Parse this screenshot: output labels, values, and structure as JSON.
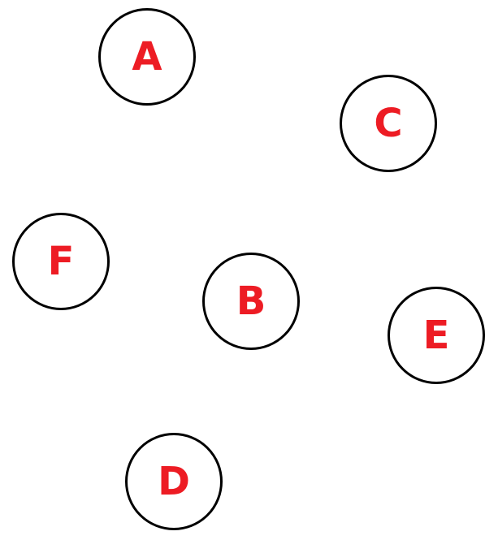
{
  "nodes": {
    "a": "A",
    "b": "B",
    "c": "C",
    "d": "D",
    "e": "E",
    "f": "F"
  },
  "colors": {
    "label": "#ed1c24",
    "outline": "#000000",
    "background": "#ffffff"
  }
}
